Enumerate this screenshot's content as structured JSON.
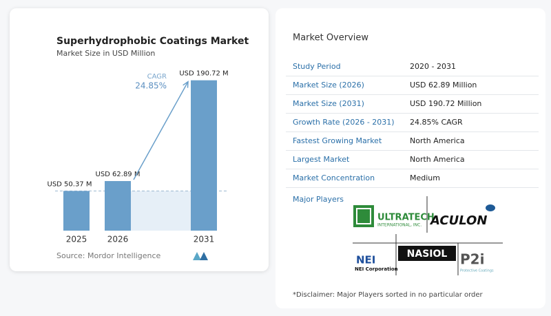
{
  "chart_data": {
    "type": "bar",
    "title": "Superhydrophobic Coatings Market",
    "subtitle": "Market Size in USD Million",
    "categories": [
      "2025",
      "2026",
      "2031"
    ],
    "values": [
      50.37,
      62.89,
      190.72
    ],
    "value_labels": [
      "USD 50.37 M",
      "USD 62.89 M",
      "USD 190.72 M"
    ],
    "color": "#6a9fca",
    "ylim": [
      0,
      200
    ],
    "annotation": {
      "label": "CAGR",
      "value": "24.85%"
    },
    "source": "Source:  Mordor Intelligence"
  },
  "overview": {
    "title": "Market Overview",
    "rows": [
      [
        "Study Period",
        "2020 - 2031"
      ],
      [
        "Market Size (2026)",
        "USD 62.89 Million"
      ],
      [
        "Market Size (2031)",
        "USD 190.72 Million"
      ],
      [
        "Growth Rate (2026 - 2031)",
        "24.85% CAGR"
      ],
      [
        "Fastest Growing Market",
        "North America"
      ],
      [
        "Largest Market",
        "North America"
      ],
      [
        "Market Concentration",
        "Medium"
      ]
    ]
  },
  "players": {
    "title": "Major Players",
    "logos": {
      "ultratech": "ULTRATECH",
      "ultratech_sub": "INTERNATIONAL, INC.",
      "aculon": "ACULON",
      "nei": "NEI",
      "nei_sub": "NEI Corporation",
      "nasiol": "NASIOL",
      "p2i": "P2i",
      "p2i_sub": "Protective Coatings"
    }
  },
  "disclaimer": "*Disclaimer: Major Players sorted in no particular order"
}
